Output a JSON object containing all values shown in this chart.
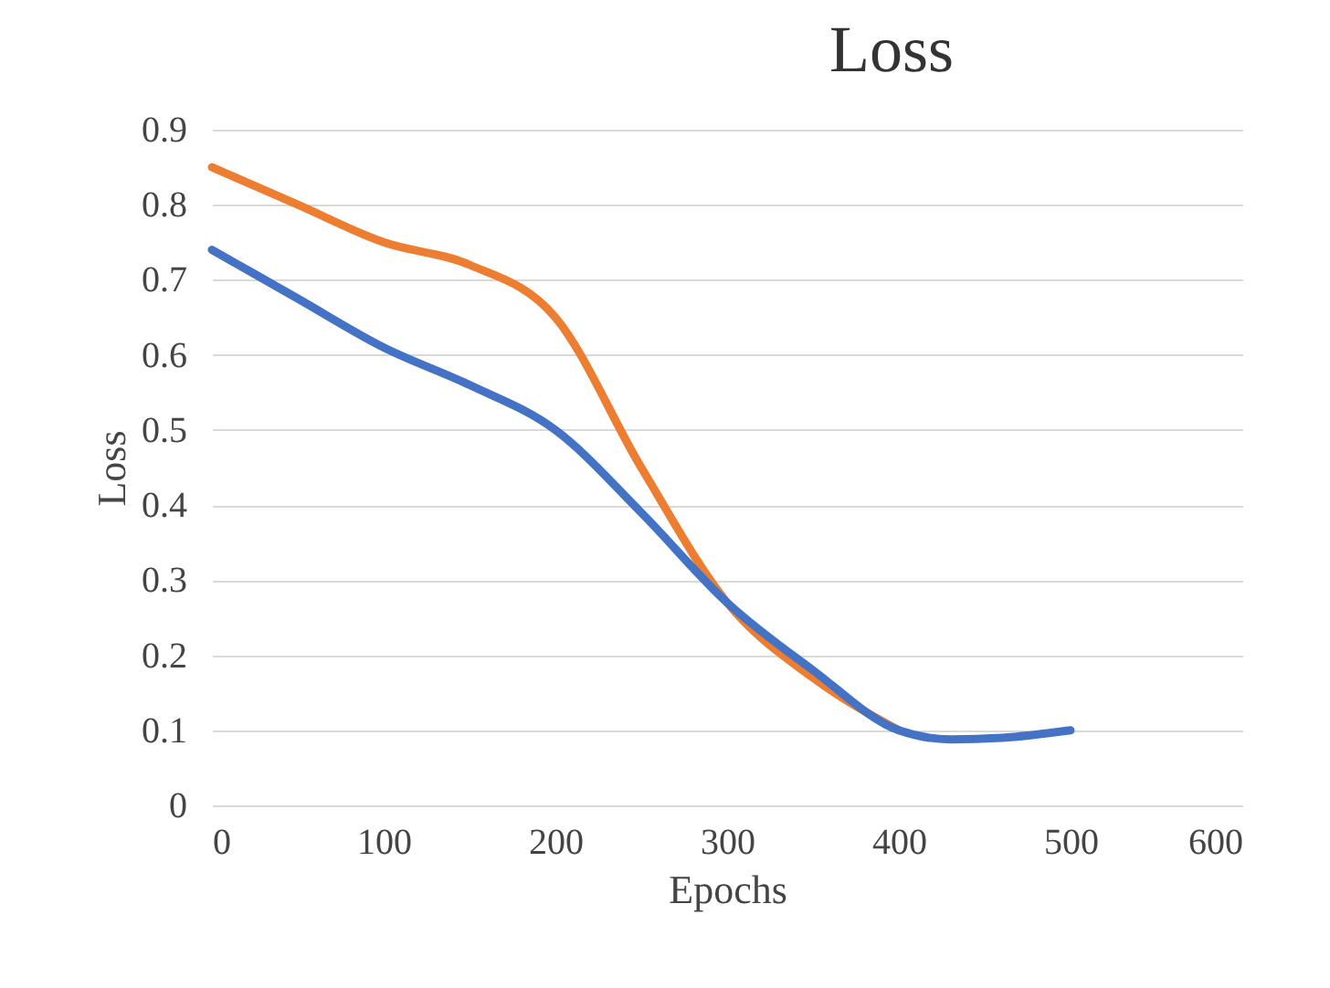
{
  "chart_data": {
    "type": "line",
    "title": "Loss",
    "xlabel": "Epochs",
    "ylabel": "Loss",
    "x": [
      0,
      50,
      100,
      150,
      200,
      250,
      300,
      350,
      400,
      430,
      460,
      500
    ],
    "series": [
      {
        "color": "#ed7d31",
        "values": [
          0.85,
          0.8,
          0.75,
          0.72,
          0.65,
          0.45,
          0.27,
          0.17,
          0.1,
          null,
          null,
          null
        ]
      },
      {
        "color": "#4472c4",
        "values": [
          0.74,
          0.675,
          0.61,
          0.56,
          0.5,
          0.39,
          0.27,
          0.18,
          0.1,
          0.088,
          0.09,
          0.1
        ]
      }
    ],
    "xlim": [
      0,
      600
    ],
    "xticks": [
      0,
      100,
      200,
      300,
      400,
      500,
      600
    ],
    "ylim": [
      0,
      0.9
    ],
    "yticks": [
      0,
      0.1,
      0.2,
      0.3,
      0.4,
      0.5,
      0.6,
      0.7,
      0.8,
      0.9
    ],
    "grid": "y",
    "legend": false,
    "marker": "none",
    "line_style": "solid"
  }
}
